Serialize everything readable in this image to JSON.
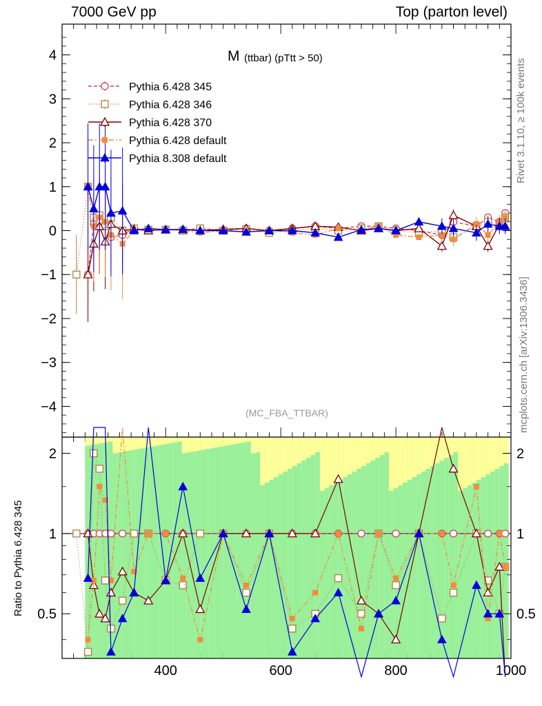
{
  "header": {
    "left": "7000 GeV pp",
    "right": "Top (parton level)"
  },
  "side_labels": {
    "top": "Rivet 3.1.10, ≥ 100k events",
    "bottom": "mcplots.cern.ch [arXiv:1306.3436]"
  },
  "ratio_ylabel": "Ratio to Pythia 6.428 345",
  "chart_data": {
    "type": "line",
    "title": "M",
    "title_sub": "(ttbar) (pTtt > 50)",
    "watermark": "(MC_FBA_TTBAR)",
    "xlim": [
      220,
      1000
    ],
    "ylim": [
      -4.7,
      4.7
    ],
    "ratio_ylim": [
      0.34,
      2.3
    ],
    "x_ticks": [
      400,
      600,
      800,
      1000
    ],
    "y_ticks": [
      -4,
      -3,
      -2,
      -1,
      0,
      1,
      2,
      3,
      4
    ],
    "y_tick_labels": [
      "−4",
      "−3",
      "−2",
      "−1",
      "0",
      "1",
      "2",
      "3",
      "4"
    ],
    "ratio_y_ticks": [
      0.5,
      1,
      2
    ],
    "ratio_y_tick_labels": [
      "0.5",
      "1",
      "2"
    ],
    "legend_position": "top-left",
    "colors": {
      "band_inner": "#99f099",
      "band_outer": "#ffff99",
      "p345": "#d43f5c",
      "p346": "#b07d3a",
      "p370": "#7a0000",
      "p6def": "#f58a3a",
      "p8def": "#0000dd"
    },
    "series": [
      {
        "name": "Pythia 6.428 345",
        "key": "p345",
        "marker": "circle-open",
        "dash": "5,3",
        "x": [
          265,
          275,
          285,
          295,
          305,
          325,
          345,
          370,
          400,
          430,
          460,
          500,
          540,
          580,
          620,
          660,
          700,
          740,
          770,
          800,
          840,
          880,
          900,
          940,
          960,
          980,
          990
        ],
        "y": [
          -1.0,
          0.15,
          0.2,
          0.15,
          -0.15,
          -0.1,
          0.05,
          0.02,
          0.03,
          0.02,
          0.05,
          0.0,
          0.05,
          0.0,
          0.05,
          0.1,
          0.05,
          0.1,
          0.1,
          0.05,
          0.0,
          -0.1,
          0.2,
          0.1,
          0.3,
          0.2,
          0.4
        ]
      },
      {
        "name": "Pythia 6.428 346",
        "key": "p346",
        "marker": "square-open",
        "dash": "1,3",
        "x": [
          245,
          265,
          275,
          285,
          295,
          305,
          325,
          345,
          370,
          400,
          430,
          460,
          500,
          540,
          580,
          620,
          660,
          700,
          740,
          770,
          800,
          840,
          880,
          900,
          940,
          960,
          980,
          990
        ],
        "y": [
          -1.0,
          1.0,
          0.3,
          0.35,
          0.1,
          0.3,
          0.0,
          0.05,
          0.02,
          0.02,
          0.0,
          0.05,
          0.0,
          0.03,
          -0.05,
          0.0,
          0.05,
          0.0,
          0.05,
          0.1,
          0.0,
          -0.05,
          0.0,
          -0.15,
          0.1,
          0.2,
          0.1,
          0.3
        ]
      },
      {
        "name": "Pythia 6.428 370",
        "key": "p370",
        "marker": "triangle-open",
        "dash": "",
        "x": [
          265,
          275,
          285,
          295,
          305,
          325,
          345,
          370,
          400,
          430,
          460,
          500,
          540,
          580,
          620,
          660,
          700,
          740,
          770,
          800,
          840,
          880,
          900,
          940,
          960,
          980,
          990
        ],
        "y": [
          -1.0,
          -0.3,
          0.1,
          -0.25,
          0.15,
          0.0,
          0.03,
          0.0,
          0.02,
          0.02,
          0.0,
          0.03,
          0.05,
          0.0,
          0.05,
          0.1,
          0.08,
          0.0,
          0.05,
          0.0,
          0.05,
          -0.35,
          0.35,
          0.1,
          -0.35,
          0.15,
          0.1
        ]
      },
      {
        "name": "Pythia 6.428 default",
        "key": "p6def",
        "marker": "square-filled",
        "dash": "7,3,2,3",
        "x": [
          265,
          275,
          285,
          295,
          305,
          325,
          345,
          370,
          400,
          430,
          460,
          500,
          540,
          580,
          620,
          660,
          700,
          740,
          770,
          800,
          840,
          880,
          900,
          940,
          960,
          980,
          990
        ],
        "y": [
          1.0,
          0.1,
          0.3,
          0.2,
          -0.1,
          -0.3,
          0.0,
          0.02,
          0.03,
          0.0,
          -0.05,
          0.0,
          -0.03,
          0.02,
          -0.05,
          -0.1,
          0.05,
          0.0,
          0.1,
          -0.1,
          -0.15,
          -0.1,
          -0.2,
          0.15,
          -0.1,
          0.2,
          0.3
        ]
      },
      {
        "name": "Pythia 8.308 default",
        "key": "p8def",
        "marker": "triangle-filled",
        "dash": "",
        "x": [
          265,
          275,
          285,
          295,
          305,
          325,
          345,
          370,
          400,
          430,
          460,
          500,
          540,
          580,
          620,
          660,
          700,
          740,
          770,
          800,
          840,
          880,
          900,
          940,
          960,
          980,
          990
        ],
        "y": [
          1.0,
          0.5,
          1.0,
          1.0,
          0.4,
          0.45,
          0.0,
          0.05,
          0.02,
          0.03,
          0.0,
          0.0,
          -0.03,
          0.0,
          0.0,
          -0.05,
          -0.15,
          0.02,
          0.05,
          0.0,
          0.2,
          0.1,
          0.05,
          -0.05,
          0.15,
          0.1,
          0.1
        ]
      }
    ]
  }
}
